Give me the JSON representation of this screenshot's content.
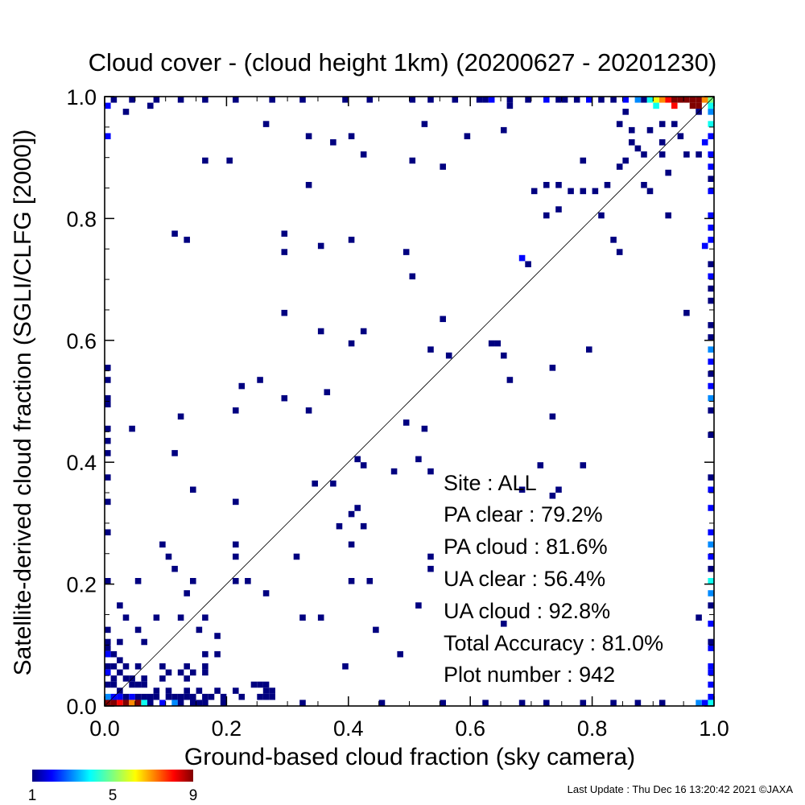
{
  "chart_data": {
    "type": "heatmap",
    "title": "Cloud cover - (cloud height 1km)  (20200627 - 20201230)",
    "xlabel": "Ground-based cloud fraction (sky camera)",
    "ylabel": "Satellite-derived cloud fraction (SGLI/CLFG [2000])",
    "xlim": [
      0,
      1
    ],
    "ylim": [
      0,
      1
    ],
    "xticks": [
      "0.0",
      "0.2",
      "0.4",
      "0.6",
      "0.8",
      "1.0"
    ],
    "yticks": [
      "0.0",
      "0.2",
      "0.4",
      "0.6",
      "0.8",
      "1.0"
    ],
    "diagonal_line": true,
    "colorbar": {
      "min": 1,
      "max": 9,
      "tick_labels": [
        "1",
        "5",
        "9"
      ]
    },
    "stats": {
      "site": "Site : ALL",
      "pa_clear": "PA clear :  79.2%",
      "pa_cloud": "PA cloud :  81.6%",
      "ua_clear": "UA clear :  56.4%",
      "ua_cloud": "UA cloud :  92.8%",
      "total_accuracy": "Total Accuracy :  81.0%",
      "plot_number": "Plot number :       942"
    },
    "cells_xyc": [
      [
        0.01,
        0.99,
        1
      ],
      [
        0.04,
        0.99,
        1
      ],
      [
        0.08,
        0.99,
        1
      ],
      [
        0.12,
        0.99,
        1
      ],
      [
        0.16,
        0.99,
        1
      ],
      [
        0.21,
        0.99,
        1
      ],
      [
        0.27,
        0.99,
        1
      ],
      [
        0.32,
        0.99,
        1
      ],
      [
        0.39,
        0.99,
        1
      ],
      [
        0.43,
        0.99,
        1
      ],
      [
        0.5,
        0.99,
        1
      ],
      [
        0.53,
        0.99,
        1
      ],
      [
        0.57,
        0.99,
        1
      ],
      [
        0.61,
        0.99,
        1
      ],
      [
        0.62,
        0.99,
        1
      ],
      [
        0.63,
        0.99,
        2
      ],
      [
        0.66,
        0.99,
        1
      ],
      [
        0.69,
        0.99,
        1
      ],
      [
        0.72,
        0.99,
        2
      ],
      [
        0.74,
        0.99,
        1
      ],
      [
        0.75,
        0.99,
        1
      ],
      [
        0.77,
        0.99,
        1
      ],
      [
        0.79,
        0.99,
        2
      ],
      [
        0.81,
        0.99,
        1
      ],
      [
        0.83,
        0.99,
        1
      ],
      [
        0.85,
        0.99,
        2
      ],
      [
        0.87,
        0.99,
        3
      ],
      [
        0.88,
        0.99,
        1
      ],
      [
        0.89,
        0.99,
        4
      ],
      [
        0.9,
        0.99,
        6
      ],
      [
        0.91,
        0.99,
        7
      ],
      [
        0.92,
        0.99,
        8
      ],
      [
        0.93,
        0.99,
        9
      ],
      [
        0.94,
        0.99,
        9
      ],
      [
        0.95,
        0.99,
        9
      ],
      [
        0.96,
        0.99,
        9
      ],
      [
        0.97,
        0.99,
        9
      ],
      [
        0.98,
        0.99,
        7
      ],
      [
        0.99,
        0.99,
        5
      ],
      [
        0.0,
        0.98,
        2
      ],
      [
        0.9,
        0.98,
        4
      ],
      [
        0.93,
        0.98,
        8
      ],
      [
        0.96,
        0.98,
        9
      ],
      [
        0.97,
        0.98,
        9
      ],
      [
        0.99,
        0.98,
        4
      ],
      [
        0.03,
        0.97,
        1
      ],
      [
        0.07,
        0.98,
        1
      ],
      [
        0.66,
        0.98,
        1
      ],
      [
        0.85,
        0.97,
        1
      ],
      [
        0.97,
        0.97,
        1
      ],
      [
        0.99,
        0.97,
        3
      ],
      [
        0.26,
        0.95,
        1
      ],
      [
        0.52,
        0.95,
        1
      ],
      [
        0.84,
        0.95,
        1
      ],
      [
        0.91,
        0.95,
        1
      ],
      [
        0.93,
        0.95,
        1
      ],
      [
        0.99,
        0.95,
        4
      ],
      [
        0.0,
        0.93,
        2
      ],
      [
        0.33,
        0.93,
        1
      ],
      [
        0.4,
        0.93,
        1
      ],
      [
        0.59,
        0.93,
        1
      ],
      [
        0.65,
        0.94,
        1
      ],
      [
        0.86,
        0.94,
        1
      ],
      [
        0.89,
        0.94,
        1
      ],
      [
        0.94,
        0.93,
        1
      ],
      [
        0.99,
        0.93,
        2
      ],
      [
        0.37,
        0.92,
        1
      ],
      [
        0.86,
        0.92,
        1
      ],
      [
        0.91,
        0.92,
        1
      ],
      [
        0.98,
        0.92,
        2
      ],
      [
        0.42,
        0.9,
        1
      ],
      [
        0.87,
        0.91,
        1
      ],
      [
        0.88,
        0.9,
        1
      ],
      [
        0.91,
        0.9,
        1
      ],
      [
        0.95,
        0.9,
        1
      ],
      [
        0.97,
        0.9,
        1
      ],
      [
        0.99,
        0.9,
        2
      ],
      [
        0.16,
        0.89,
        1
      ],
      [
        0.2,
        0.89,
        1
      ],
      [
        0.5,
        0.89,
        1
      ],
      [
        0.78,
        0.89,
        1
      ],
      [
        0.85,
        0.89,
        1
      ],
      [
        0.99,
        0.88,
        2
      ],
      [
        0.55,
        0.88,
        1
      ],
      [
        0.84,
        0.88,
        1
      ],
      [
        0.92,
        0.87,
        1
      ],
      [
        0.99,
        0.86,
        1
      ],
      [
        0.33,
        0.85,
        1
      ],
      [
        0.72,
        0.85,
        1
      ],
      [
        0.74,
        0.85,
        1
      ],
      [
        0.82,
        0.85,
        1
      ],
      [
        0.88,
        0.85,
        1
      ],
      [
        0.99,
        0.84,
        2
      ],
      [
        0.7,
        0.84,
        1
      ],
      [
        0.76,
        0.84,
        1
      ],
      [
        0.78,
        0.84,
        1
      ],
      [
        0.8,
        0.84,
        1
      ],
      [
        0.89,
        0.84,
        1
      ],
      [
        0.72,
        0.8,
        1
      ],
      [
        0.74,
        0.81,
        1
      ],
      [
        0.81,
        0.8,
        1
      ],
      [
        0.92,
        0.8,
        1
      ],
      [
        0.99,
        0.8,
        2
      ],
      [
        0.99,
        0.78,
        2
      ],
      [
        0.11,
        0.77,
        1
      ],
      [
        0.29,
        0.77,
        1
      ],
      [
        0.13,
        0.76,
        1
      ],
      [
        0.4,
        0.76,
        1
      ],
      [
        0.83,
        0.76,
        1
      ],
      [
        0.99,
        0.76,
        2
      ],
      [
        0.98,
        0.75,
        2
      ],
      [
        0.29,
        0.74,
        1
      ],
      [
        0.35,
        0.75,
        1
      ],
      [
        0.49,
        0.74,
        1
      ],
      [
        0.84,
        0.74,
        1
      ],
      [
        0.68,
        0.73,
        2
      ],
      [
        0.69,
        0.72,
        1
      ],
      [
        0.99,
        0.72,
        1
      ],
      [
        0.5,
        0.7,
        1
      ],
      [
        0.99,
        0.7,
        2
      ],
      [
        0.99,
        0.68,
        1
      ],
      [
        0.99,
        0.66,
        1
      ],
      [
        0.29,
        0.64,
        1
      ],
      [
        0.95,
        0.64,
        1
      ],
      [
        0.55,
        0.63,
        1
      ],
      [
        0.99,
        0.62,
        1
      ],
      [
        0.35,
        0.61,
        1
      ],
      [
        0.42,
        0.61,
        1
      ],
      [
        0.4,
        0.59,
        1
      ],
      [
        0.63,
        0.59,
        1
      ],
      [
        0.64,
        0.59,
        1
      ],
      [
        0.99,
        0.6,
        1
      ],
      [
        0.99,
        0.58,
        3
      ],
      [
        0.53,
        0.58,
        1
      ],
      [
        0.79,
        0.58,
        1
      ],
      [
        0.56,
        0.57,
        1
      ],
      [
        0.65,
        0.57,
        1
      ],
      [
        0.99,
        0.56,
        2
      ],
      [
        0.0,
        0.55,
        1
      ],
      [
        0.73,
        0.55,
        1
      ],
      [
        0.99,
        0.54,
        1
      ],
      [
        0.0,
        0.53,
        1
      ],
      [
        0.25,
        0.53,
        1
      ],
      [
        0.66,
        0.53,
        1
      ],
      [
        0.22,
        0.52,
        1
      ],
      [
        0.0,
        0.5,
        1
      ],
      [
        0.29,
        0.5,
        1
      ],
      [
        0.36,
        0.51,
        1
      ],
      [
        0.99,
        0.52,
        2
      ],
      [
        0.99,
        0.5,
        3
      ],
      [
        0.0,
        0.49,
        1
      ],
      [
        0.21,
        0.48,
        1
      ],
      [
        0.33,
        0.48,
        1
      ],
      [
        0.12,
        0.47,
        1
      ],
      [
        0.73,
        0.47,
        1
      ],
      [
        0.49,
        0.46,
        1
      ],
      [
        0.99,
        0.48,
        1
      ],
      [
        0.0,
        0.45,
        1
      ],
      [
        0.04,
        0.45,
        1
      ],
      [
        0.52,
        0.45,
        1
      ],
      [
        0.0,
        0.43,
        1
      ],
      [
        0.99,
        0.44,
        1
      ],
      [
        0.0,
        0.41,
        1
      ],
      [
        0.11,
        0.41,
        1
      ],
      [
        0.41,
        0.4,
        1
      ],
      [
        0.51,
        0.4,
        1
      ],
      [
        0.42,
        0.39,
        1
      ],
      [
        0.71,
        0.39,
        1
      ],
      [
        0.78,
        0.39,
        1
      ],
      [
        0.47,
        0.38,
        1
      ],
      [
        0.53,
        0.38,
        1
      ],
      [
        0.0,
        0.37,
        1
      ],
      [
        0.99,
        0.37,
        1
      ],
      [
        0.34,
        0.36,
        1
      ],
      [
        0.37,
        0.36,
        1
      ],
      [
        0.14,
        0.35,
        1
      ],
      [
        0.68,
        0.35,
        1
      ],
      [
        0.74,
        0.35,
        1
      ],
      [
        0.99,
        0.35,
        2
      ],
      [
        0.0,
        0.33,
        1
      ],
      [
        0.21,
        0.33,
        1
      ],
      [
        0.73,
        0.34,
        1
      ],
      [
        0.41,
        0.32,
        1
      ],
      [
        0.4,
        0.31,
        1
      ],
      [
        0.99,
        0.32,
        2
      ],
      [
        0.38,
        0.29,
        1
      ],
      [
        0.42,
        0.29,
        1
      ],
      [
        0.0,
        0.28,
        1
      ],
      [
        0.99,
        0.28,
        2
      ],
      [
        0.09,
        0.26,
        1
      ],
      [
        0.21,
        0.26,
        1
      ],
      [
        0.4,
        0.26,
        1
      ],
      [
        0.99,
        0.26,
        3
      ],
      [
        0.1,
        0.24,
        1
      ],
      [
        0.21,
        0.24,
        1
      ],
      [
        0.31,
        0.24,
        1
      ],
      [
        0.53,
        0.24,
        1
      ],
      [
        0.99,
        0.24,
        2
      ],
      [
        0.11,
        0.22,
        1
      ],
      [
        0.53,
        0.22,
        1
      ],
      [
        0.99,
        0.22,
        1
      ],
      [
        0.0,
        0.2,
        1
      ],
      [
        0.05,
        0.2,
        1
      ],
      [
        0.14,
        0.2,
        1
      ],
      [
        0.21,
        0.2,
        1
      ],
      [
        0.23,
        0.2,
        1
      ],
      [
        0.4,
        0.2,
        1
      ],
      [
        0.43,
        0.2,
        1
      ],
      [
        0.99,
        0.2,
        4
      ],
      [
        0.13,
        0.18,
        1
      ],
      [
        0.26,
        0.18,
        1
      ],
      [
        0.99,
        0.18,
        3
      ],
      [
        0.02,
        0.16,
        1
      ],
      [
        0.51,
        0.16,
        1
      ],
      [
        0.99,
        0.16,
        1
      ],
      [
        0.03,
        0.14,
        1
      ],
      [
        0.08,
        0.14,
        1
      ],
      [
        0.12,
        0.14,
        1
      ],
      [
        0.16,
        0.14,
        1
      ],
      [
        0.32,
        0.14,
        1
      ],
      [
        0.35,
        0.14,
        1
      ],
      [
        0.65,
        0.13,
        1
      ],
      [
        0.97,
        0.14,
        1
      ],
      [
        0.99,
        0.13,
        2
      ],
      [
        0.0,
        0.12,
        1
      ],
      [
        0.05,
        0.12,
        1
      ],
      [
        0.15,
        0.12,
        1
      ],
      [
        0.0,
        0.1,
        1
      ],
      [
        0.02,
        0.1,
        1
      ],
      [
        0.06,
        0.1,
        1
      ],
      [
        0.18,
        0.11,
        1
      ],
      [
        0.44,
        0.12,
        1
      ],
      [
        0.99,
        0.1,
        1
      ],
      [
        0.0,
        0.09,
        1
      ],
      [
        0.0,
        0.08,
        2
      ],
      [
        0.01,
        0.08,
        1
      ],
      [
        0.02,
        0.07,
        1
      ],
      [
        0.16,
        0.08,
        1
      ],
      [
        0.18,
        0.08,
        1
      ],
      [
        0.48,
        0.08,
        1
      ],
      [
        0.99,
        0.09,
        2
      ],
      [
        0.0,
        0.06,
        1
      ],
      [
        0.01,
        0.06,
        1
      ],
      [
        0.03,
        0.06,
        1
      ],
      [
        0.05,
        0.06,
        1
      ],
      [
        0.09,
        0.06,
        1
      ],
      [
        0.13,
        0.06,
        1
      ],
      [
        0.16,
        0.06,
        1
      ],
      [
        0.39,
        0.06,
        1
      ],
      [
        0.99,
        0.06,
        2
      ],
      [
        0.0,
        0.05,
        2
      ],
      [
        0.01,
        0.04,
        1
      ],
      [
        0.02,
        0.05,
        1
      ],
      [
        0.03,
        0.04,
        1
      ],
      [
        0.04,
        0.04,
        1
      ],
      [
        0.06,
        0.04,
        1
      ],
      [
        0.09,
        0.04,
        1
      ],
      [
        0.1,
        0.05,
        1
      ],
      [
        0.12,
        0.05,
        1
      ],
      [
        0.13,
        0.04,
        1
      ],
      [
        0.14,
        0.05,
        1
      ],
      [
        0.16,
        0.05,
        1
      ],
      [
        0.24,
        0.03,
        1
      ],
      [
        0.25,
        0.03,
        1
      ],
      [
        0.26,
        0.03,
        1
      ],
      [
        0.99,
        0.05,
        2
      ],
      [
        0.0,
        0.03,
        1
      ],
      [
        0.01,
        0.03,
        1
      ],
      [
        0.02,
        0.02,
        1
      ],
      [
        0.04,
        0.03,
        1
      ],
      [
        0.05,
        0.03,
        1
      ],
      [
        0.06,
        0.03,
        1
      ],
      [
        0.08,
        0.02,
        1
      ],
      [
        0.1,
        0.02,
        1
      ],
      [
        0.13,
        0.02,
        1
      ],
      [
        0.15,
        0.02,
        1
      ],
      [
        0.18,
        0.02,
        1
      ],
      [
        0.21,
        0.02,
        1
      ],
      [
        0.26,
        0.02,
        1
      ],
      [
        0.27,
        0.02,
        1
      ],
      [
        0.99,
        0.03,
        2
      ],
      [
        0.0,
        0.01,
        3
      ],
      [
        0.01,
        0.01,
        2
      ],
      [
        0.02,
        0.01,
        2
      ],
      [
        0.03,
        0.01,
        1
      ],
      [
        0.04,
        0.01,
        2
      ],
      [
        0.05,
        0.01,
        1
      ],
      [
        0.06,
        0.01,
        1
      ],
      [
        0.07,
        0.01,
        1
      ],
      [
        0.08,
        0.01,
        1
      ],
      [
        0.1,
        0.01,
        1
      ],
      [
        0.11,
        0.01,
        1
      ],
      [
        0.12,
        0.01,
        1
      ],
      [
        0.13,
        0.01,
        1
      ],
      [
        0.14,
        0.01,
        1
      ],
      [
        0.16,
        0.01,
        1
      ],
      [
        0.17,
        0.01,
        1
      ],
      [
        0.19,
        0.01,
        1
      ],
      [
        0.22,
        0.01,
        1
      ],
      [
        0.25,
        0.01,
        1
      ],
      [
        0.26,
        0.01,
        1
      ],
      [
        0.27,
        0.01,
        1
      ],
      [
        0.99,
        0.01,
        2
      ],
      [
        0.0,
        0.0,
        9
      ],
      [
        0.01,
        0.0,
        9
      ],
      [
        0.02,
        0.0,
        8
      ],
      [
        0.03,
        0.0,
        9
      ],
      [
        0.04,
        0.0,
        7
      ],
      [
        0.05,
        0.0,
        9
      ],
      [
        0.06,
        0.0,
        4
      ],
      [
        0.07,
        0.0,
        1
      ],
      [
        0.09,
        0.0,
        2
      ],
      [
        0.11,
        0.0,
        3
      ],
      [
        0.12,
        0.0,
        1
      ],
      [
        0.14,
        0.0,
        1
      ],
      [
        0.15,
        0.0,
        1
      ],
      [
        0.16,
        0.0,
        1
      ],
      [
        0.19,
        0.0,
        1
      ],
      [
        0.32,
        0.0,
        1
      ],
      [
        0.45,
        0.0,
        1
      ],
      [
        0.55,
        0.0,
        1
      ],
      [
        0.62,
        0.0,
        1
      ],
      [
        0.68,
        0.0,
        1
      ],
      [
        0.72,
        0.0,
        1
      ],
      [
        0.78,
        0.0,
        1
      ],
      [
        0.83,
        0.0,
        1
      ],
      [
        0.87,
        0.0,
        1
      ],
      [
        0.91,
        0.0,
        1
      ],
      [
        0.97,
        0.0,
        3
      ],
      [
        0.98,
        0.0,
        2
      ],
      [
        0.99,
        0.0,
        4
      ]
    ]
  },
  "footer": {
    "last_update": "Last Update : Thu Dec 16 13:20:42 2021  ©JAXA"
  }
}
